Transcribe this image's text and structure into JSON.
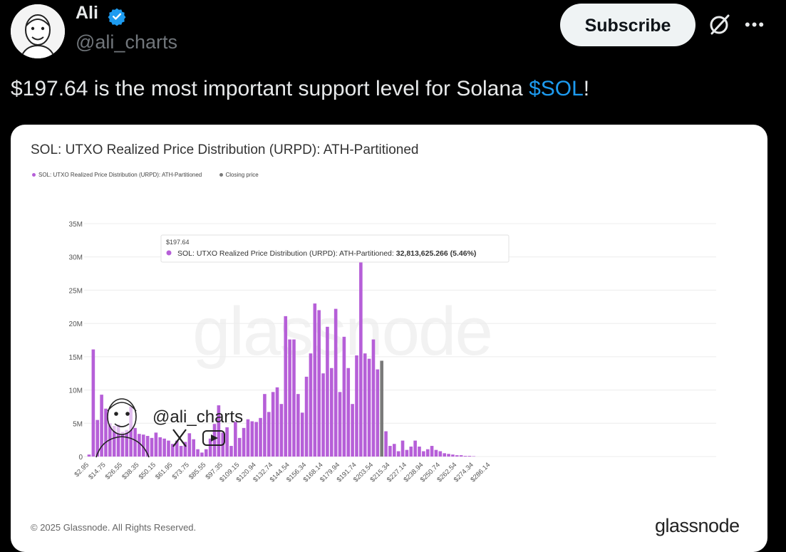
{
  "author": {
    "name": "Ali",
    "handle": "@ali_charts",
    "avatar_icon": "cartoon-avatar-icon",
    "verified_icon": "verified-badge-icon",
    "verified_color": "#1d9bf0"
  },
  "actions": {
    "subscribe_label": "Subscribe",
    "grok_icon": "grok-icon",
    "more_label": "•••"
  },
  "tweet": {
    "text_before": "$197.64 is the most important support level for Solana ",
    "cashtag": "$SOL",
    "text_after": "!",
    "cashtag_color": "#1d9bf0"
  },
  "card": {
    "watermark": "glassnode",
    "overlay_handle": "@ali_charts",
    "copyright": "© 2025 Glassnode. All Rights Reserved.",
    "brand": "glassnode"
  },
  "chart_data": {
    "type": "bar",
    "title": "SOL: UTXO Realized Price Distribution (URPD): ATH-Partitioned",
    "legend": [
      {
        "label": "SOL: UTXO Realized Price Distribution (URPD): ATH-Partitioned",
        "color": "#b65fd8"
      },
      {
        "label": "Closing price",
        "color": "#7a7a7a"
      }
    ],
    "y_ticks": [
      "0",
      "5M",
      "10M",
      "15M",
      "20M",
      "25M",
      "30M",
      "35M"
    ],
    "ylim": [
      0,
      35000000
    ],
    "x_ticks": [
      "$2.95",
      "$14.75",
      "$26.55",
      "$38.35",
      "$50.15",
      "$61.95",
      "$73.75",
      "$85.55",
      "$97.35",
      "$109.15",
      "$120.94",
      "$132.74",
      "$144.54",
      "$156.34",
      "$168.14",
      "$179.94",
      "$191.74",
      "$203.54",
      "$215.34",
      "$227.14",
      "$238.94",
      "$250.74",
      "$262.54",
      "$274.34",
      "$286.14"
    ],
    "bin_width": 2.95,
    "bar_color": "#b65fd8",
    "closing_color": "#7a7a7a",
    "closing_price_bin": 70,
    "values_m": [
      0.3,
      16.1,
      5.5,
      9.3,
      7.2,
      5.0,
      4.6,
      4.8,
      3.7,
      4.0,
      7.5,
      4.3,
      3.4,
      3.3,
      3.1,
      2.8,
      3.6,
      2.9,
      2.7,
      2.4,
      1.9,
      2.4,
      1.6,
      2.2,
      3.5,
      2.6,
      1.1,
      0.6,
      1.1,
      2.7,
      4.9,
      7.7,
      3.6,
      4.4,
      1.6,
      5.2,
      2.8,
      4.3,
      5.6,
      5.3,
      5.2,
      5.8,
      9.4,
      6.7,
      9.7,
      10.4,
      7.9,
      21.1,
      17.6,
      17.6,
      9.4,
      6.6,
      12.0,
      15.5,
      23.0,
      22.0,
      12.5,
      19.5,
      13.3,
      22.2,
      9.7,
      18.0,
      13.3,
      7.9,
      15.2,
      33.0,
      15.5,
      14.7,
      17.6,
      13.1,
      14.4,
      3.8,
      1.6,
      1.9,
      0.8,
      2.4,
      1.0,
      1.5,
      2.4,
      1.5,
      0.8,
      1.1,
      1.6,
      1.0,
      0.8,
      0.5,
      0.4,
      0.3,
      0.2,
      0.2,
      0.1,
      0.1,
      0.05
    ],
    "tooltip": {
      "price": "$197.64",
      "series": "SOL: UTXO Realized Price Distribution (URPD): ATH-Partitioned:",
      "value": "32,813,625.266 (5.46%)"
    }
  }
}
